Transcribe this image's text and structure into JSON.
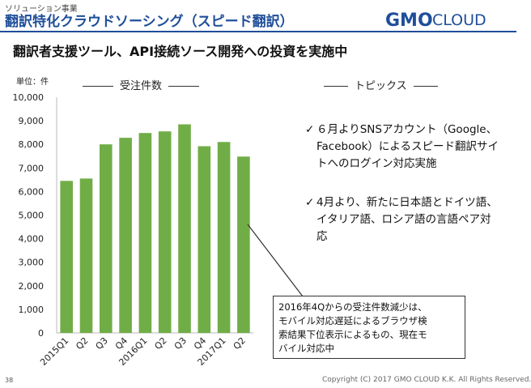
{
  "header": {
    "section_label": "ソリューション事業",
    "title": "翻訳特化クラウドソーシング（スピード翻訳）",
    "logo_text": "CLOUD",
    "logo_brand_text": "GMO",
    "logo_color": "#1f4e9a"
  },
  "headline": "翻訳者支援ツール、API接続ソース開発への投資を実施中",
  "chart_heading": "受注件数",
  "topics_heading": "トピックス",
  "topics": [
    {
      "check": "✓",
      "text": "６月よりSNSアカウント（Google、Facebook）によるスピード翻訳サイトへのログイン対応実施"
    },
    {
      "check": "✓",
      "text": "4月より、新たに日本語とドイツ語、イタリア語、ロシア語の言語ペア対応"
    }
  ],
  "callout": "2016年4Qからの受注件数減少は、\nモバイル対応遅延によるブラウザ検\n索結果下位表示によるもの、現在モ\nバイル対応中",
  "footer": {
    "page_number": "38",
    "copyright": "Copyright (C) 2017 GMO CLOUD K.K. All Rights Reserved."
  },
  "chart_data": {
    "type": "bar",
    "title": "",
    "unit_label": "単位：件",
    "categories": [
      "2015Q1",
      "Q2",
      "Q3",
      "Q4",
      "2016Q1",
      "Q2",
      "Q3",
      "Q4",
      "2017Q1",
      "Q2"
    ],
    "values": [
      6450,
      6550,
      8000,
      8280,
      8480,
      8550,
      8850,
      7920,
      8100,
      7480
    ],
    "ylim": [
      0,
      10000
    ],
    "yticks": [
      "0",
      "1,000",
      "2,000",
      "3,000",
      "4,000",
      "5,000",
      "6,000",
      "7,000",
      "8,000",
      "9,000",
      "10,000"
    ],
    "bar_color": "#70ad47",
    "grid": false,
    "legend": "none"
  }
}
